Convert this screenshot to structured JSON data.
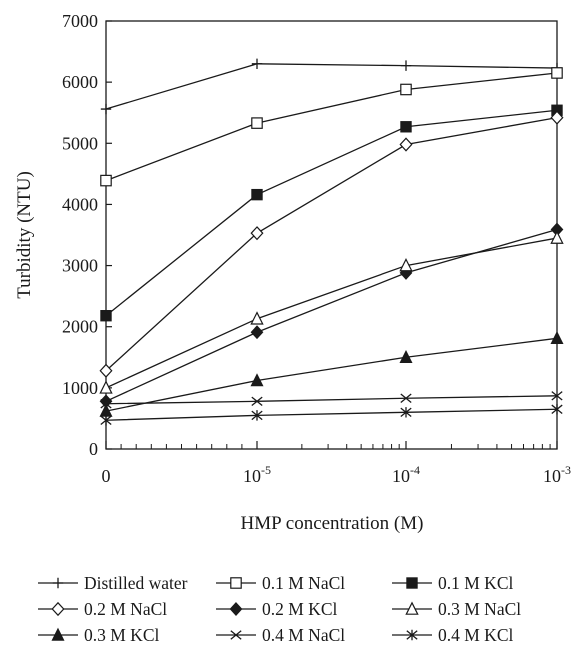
{
  "chart_data": {
    "type": "line",
    "xlabel": "HMP concentration (M)",
    "ylabel": "Turbidity (NTU)",
    "ylim": [
      0,
      7000
    ],
    "yticks": [
      0,
      1000,
      2000,
      3000,
      4000,
      5000,
      6000,
      7000
    ],
    "x_tick_labels": [
      {
        "base": "0",
        "exp": ""
      },
      {
        "base": "10",
        "exp": "-5"
      },
      {
        "base": "10",
        "exp": "-4"
      },
      {
        "base": "10",
        "exp": "-3"
      }
    ],
    "x": [
      "0",
      "10^-5",
      "10^-4",
      "10^-3"
    ],
    "x_scale": "log (with zero position at left)",
    "grid": false,
    "legend_position": "bottom",
    "series": [
      {
        "name": "Distilled water",
        "marker": "plus",
        "values": [
          5560,
          6300,
          6270,
          6230
        ]
      },
      {
        "name": "0.1 M NaCl",
        "marker": "open-square",
        "values": [
          4390,
          5330,
          5880,
          6150
        ]
      },
      {
        "name": "0.1 M KCl",
        "marker": "filled-square",
        "values": [
          2180,
          4160,
          5270,
          5540
        ]
      },
      {
        "name": "0.2 M NaCl",
        "marker": "open-diamond",
        "values": [
          1280,
          3530,
          4980,
          5420
        ]
      },
      {
        "name": "0.2 M KCl",
        "marker": "filled-diamond",
        "values": [
          780,
          1910,
          2880,
          3590
        ]
      },
      {
        "name": "0.3 M NaCl",
        "marker": "open-triangle",
        "values": [
          1000,
          2130,
          3000,
          3450
        ]
      },
      {
        "name": "0.3 M KCl",
        "marker": "filled-triangle",
        "values": [
          620,
          1120,
          1500,
          1810
        ]
      },
      {
        "name": "0.4 M NaCl",
        "marker": "x",
        "values": [
          740,
          780,
          830,
          870
        ]
      },
      {
        "name": "0.4 M KCl",
        "marker": "asterisk",
        "values": [
          470,
          550,
          600,
          650
        ]
      }
    ]
  }
}
